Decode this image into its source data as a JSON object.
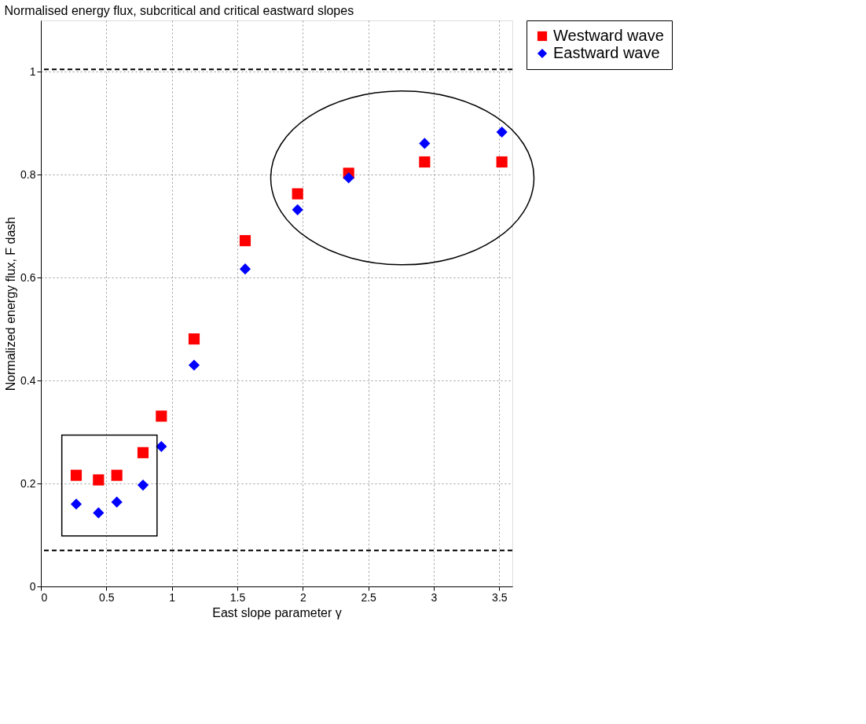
{
  "chart_data": {
    "type": "scatter",
    "title": "Normalised energy flux, subcritical and critical eastward slopes",
    "xlabel": "East slope parameter γ",
    "ylabel": "Normalized energy flux,  F dash",
    "x": [
      0.27,
      0.44,
      0.58,
      0.78,
      0.92,
      1.17,
      1.56,
      1.96,
      2.35,
      2.93,
      3.52
    ],
    "series": [
      {
        "name": "Westward wave",
        "color": "#ff0000",
        "marker": "square",
        "values": [
          0.216,
          0.207,
          0.216,
          0.26,
          0.331,
          0.481,
          0.672,
          0.763,
          0.803,
          0.825,
          0.825
        ]
      },
      {
        "name": "Eastward wave",
        "color": "#0000ff",
        "marker": "diamond",
        "values": [
          0.16,
          0.143,
          0.164,
          0.197,
          0.272,
          0.43,
          0.617,
          0.732,
          0.794,
          0.861,
          0.883
        ]
      }
    ],
    "xlim": [
      0,
      3.6
    ],
    "ylim": [
      0,
      1.1
    ],
    "xticks": [
      0,
      0.5,
      1,
      1.5,
      2,
      2.5,
      3,
      3.5
    ],
    "yticks": [
      0,
      0.2,
      0.4,
      0.6,
      0.8,
      1
    ],
    "ref_lines": [
      {
        "axis": "y",
        "value": 1.005,
        "line_style": "dashed",
        "color": "#000000"
      },
      {
        "axis": "y",
        "value": 0.07,
        "line_style": "dashed",
        "color": "#000000"
      }
    ],
    "grid": true,
    "legend": "top right"
  }
}
